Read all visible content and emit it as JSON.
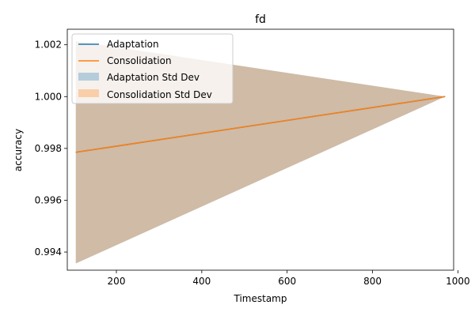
{
  "chart_data": {
    "type": "line",
    "title": "fd",
    "xlabel": "Timestamp",
    "ylabel": "accuracy",
    "xlim": [
      85,
      990
    ],
    "ylim": [
      0.9933,
      1.0026
    ],
    "xticks": [
      200,
      400,
      600,
      800,
      1000
    ],
    "xtick_labels": [
      "200",
      "400",
      "600",
      "800",
      "1000"
    ],
    "yticks": [
      0.994,
      0.996,
      0.998,
      1.0,
      1.002
    ],
    "ytick_labels": [
      "0.994",
      "0.996",
      "0.998",
      "1.000",
      "1.002"
    ],
    "grid": false,
    "legend_position": "top-left",
    "series": [
      {
        "name": "Adaptation",
        "color": "#1f77b4",
        "x": [
          105,
          970
        ],
        "y": [
          0.99785,
          1.0
        ],
        "std_name": "Adaptation Std Dev",
        "std_lower": [
          0.99356,
          1.0
        ],
        "std_upper": [
          1.00214,
          1.0
        ]
      },
      {
        "name": "Consolidation",
        "color": "#ff7f0e",
        "x": [
          105,
          970
        ],
        "y": [
          0.99785,
          1.0
        ],
        "std_name": "Consolidation Std Dev",
        "std_lower": [
          0.99356,
          1.0
        ],
        "std_upper": [
          1.00214,
          1.0
        ]
      }
    ]
  }
}
